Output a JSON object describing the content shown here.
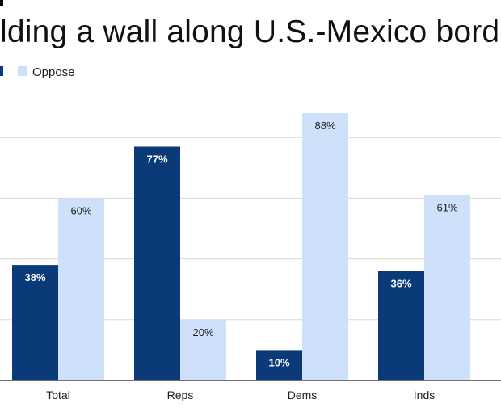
{
  "chart_data": {
    "type": "bar",
    "title": "lding a wall along U.S.-Mexico borde",
    "categories": [
      "Total",
      "Reps",
      "Dems",
      "Inds"
    ],
    "series": [
      {
        "name": "",
        "values": [
          38,
          77,
          10,
          36
        ],
        "labels": [
          "38%",
          "77%",
          "10%",
          "36%"
        ],
        "color": "#0a3a78",
        "label_color": "#ffffff"
      },
      {
        "name": "Oppose",
        "values": [
          60,
          20,
          88,
          61
        ],
        "labels": [
          "60%",
          "20%",
          "88%",
          "61%"
        ],
        "color": "#cfe0fb",
        "label_color": "#222222"
      }
    ],
    "ylim": [
      0,
      100
    ],
    "grid": true,
    "legend": "top-left"
  }
}
